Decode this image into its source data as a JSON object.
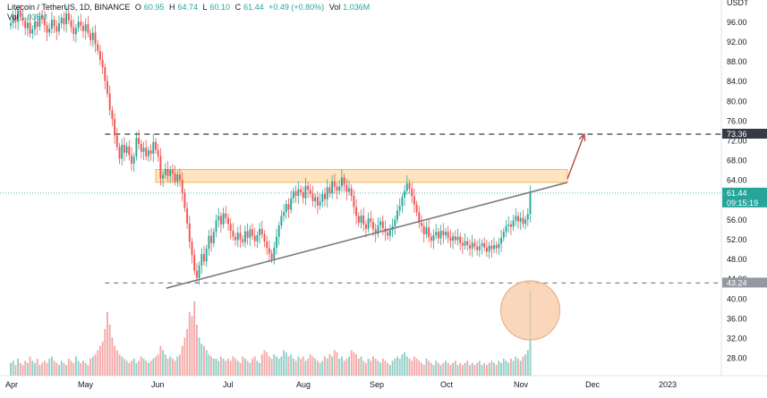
{
  "header": {
    "symbol": "Litecoin / TetherUS, 1D, BINANCE",
    "open_label": "O",
    "open": "60.95",
    "high_label": "H",
    "high": "64.74",
    "low_label": "L",
    "low": "60.10",
    "close_label": "C",
    "close": "61.44",
    "change": "+0.49 (+0.80%)",
    "vol_label": "Vol",
    "vol_value": "1.036M",
    "vol_row_label": "Vol",
    "vol_row_value": "1.036M"
  },
  "colors": {
    "up": "#26a69a",
    "down": "#ef5350",
    "up_vol": "#8fd0c7",
    "down_vol": "#f5a9a7",
    "resistance_zone": "#ffd08a",
    "arrow": "#b34a4a",
    "trendline": "#7a7a84",
    "circle": "#f8c9a4"
  },
  "chart_data": {
    "type": "candlestick",
    "y_axis_title": "USDT",
    "ylim": [
      24.5,
      100.5
    ],
    "y_ticks": [
      "96.00",
      "92.00",
      "88.00",
      "84.00",
      "80.00",
      "76.00",
      "72.00",
      "68.00",
      "64.00",
      "60.00",
      "56.00",
      "52.00",
      "48.00",
      "44.00",
      "40.00",
      "36.00",
      "32.00",
      "28.00"
    ],
    "x_ticks": [
      "Apr",
      "May",
      "Jun",
      "Jul",
      "Aug",
      "Sep",
      "Oct",
      "Nov",
      "Dec",
      "2023"
    ],
    "price_label": "61.44",
    "countdown": "09:15:19",
    "level_labels": [
      "73.36",
      "43.24"
    ],
    "levels": [
      73.36,
      43.24
    ],
    "resistance_zone": [
      63.6,
      66.2
    ],
    "current_price": 61.44,
    "trendline": {
      "from": [
        "Jun 5",
        42.2
      ],
      "to": [
        "Nov 21",
        63.6
      ]
    },
    "projection_arrow": {
      "from": [
        "Nov 21",
        64.3
      ],
      "to": [
        "Nov 28",
        73.36
      ]
    },
    "volume_highlight": "Nov",
    "candles_month_start": "Apr",
    "closes": [
      95.8,
      97.2,
      96.1,
      98.4,
      97.0,
      96.3,
      94.8,
      95.9,
      93.7,
      94.6,
      96.2,
      95.1,
      97.3,
      96.8,
      95.4,
      93.9,
      94.7,
      96.5,
      95.2,
      94.1,
      95.8,
      96.9,
      95.6,
      97.8,
      96.4,
      95.0,
      93.6,
      94.8,
      96.1,
      95.3,
      94.2,
      95.6,
      93.8,
      92.4,
      93.9,
      91.6,
      90.2,
      88.4,
      86.9,
      84.1,
      81.6,
      78.2,
      76.4,
      73.1,
      70.8,
      68.4,
      71.2,
      69.6,
      70.9,
      69.1,
      67.4,
      68.8,
      72.6,
      71.4,
      69.8,
      70.6,
      68.9,
      70.1,
      69.4,
      71.8,
      70.2,
      68.9,
      64.4,
      65.1,
      66.3,
      64.9,
      66.1,
      65.4,
      63.8,
      65.2,
      64.1,
      61.5,
      58.4,
      55.3,
      51.6,
      48.9,
      45.7,
      44.3,
      46.8,
      49.1,
      47.6,
      50.2,
      52.8,
      51.3,
      53.6,
      55.9,
      56.8,
      55.1,
      57.3,
      56.4,
      55.2,
      53.8,
      52.6,
      51.9,
      53.4,
      52.1,
      51.5,
      53.7,
      52.4,
      54.1,
      52.8,
      51.7,
      52.9,
      54.2,
      53.1,
      51.6,
      50.3,
      49.2,
      48.1,
      50.4,
      52.6,
      54.9,
      56.8,
      57.6,
      59.2,
      58.1,
      60.4,
      61.8,
      60.9,
      62.2,
      61.6,
      60.4,
      62.9,
      62.1,
      61.3,
      59.8,
      60.6,
      58.9,
      59.7,
      61.3,
      60.2,
      62.6,
      61.4,
      63.8,
      62.7,
      61.9,
      62.8,
      64.6,
      63.1,
      61.7,
      62.4,
      60.9,
      58.6,
      56.8,
      55.4,
      56.9,
      55.1,
      54.2,
      56.3,
      55.6,
      54.1,
      53.2,
      54.9,
      55.7,
      54.3,
      53.5,
      52.8,
      53.9,
      54.7,
      56.1,
      57.9,
      58.8,
      60.6,
      61.9,
      63.4,
      62.3,
      60.8,
      59.1,
      57.6,
      55.4,
      54.8,
      53.1,
      54.5,
      52.6,
      51.8,
      52.9,
      53.6,
      52.3,
      53.8,
      52.9,
      53.6,
      52.4,
      51.8,
      52.7,
      51.9,
      52.6,
      51.3,
      50.8,
      51.7,
      50.9,
      50.2,
      51.4,
      50.6,
      49.9,
      50.7,
      51.3,
      50.4,
      49.6,
      50.8,
      50.1,
      50.9,
      50.3,
      51.2,
      52.4,
      53.6,
      54.8,
      55.1,
      54.6,
      55.9,
      56.8,
      55.7,
      56.4,
      55.2,
      56.1,
      57.2,
      61.4
    ],
    "volumes": [
      6,
      7,
      5,
      8,
      6,
      5,
      7,
      6,
      9,
      7,
      6,
      8,
      5,
      6,
      7,
      6,
      8,
      9,
      7,
      6,
      5,
      7,
      6,
      5,
      8,
      7,
      6,
      9,
      7,
      6,
      7,
      6,
      5,
      8,
      9,
      10,
      12,
      14,
      16,
      22,
      30,
      24,
      18,
      14,
      12,
      10,
      9,
      8,
      7,
      6,
      7,
      8,
      6,
      7,
      9,
      8,
      7,
      6,
      7,
      8,
      9,
      10,
      14,
      12,
      10,
      8,
      9,
      8,
      7,
      9,
      10,
      14,
      18,
      22,
      30,
      28,
      35,
      24,
      18,
      15,
      14,
      12,
      10,
      9,
      8,
      8,
      7,
      9,
      8,
      7,
      8,
      7,
      9,
      8,
      7,
      6,
      9,
      8,
      7,
      6,
      8,
      9,
      7,
      6,
      10,
      12,
      11,
      9,
      8,
      10,
      9,
      8,
      9,
      12,
      11,
      9,
      10,
      8,
      7,
      9,
      8,
      9,
      7,
      8,
      10,
      9,
      8,
      7,
      6,
      7,
      9,
      8,
      10,
      9,
      12,
      11,
      8,
      9,
      7,
      8,
      9,
      12,
      11,
      10,
      8,
      9,
      7,
      6,
      8,
      7,
      9,
      8,
      7,
      6,
      8,
      7,
      6,
      5,
      7,
      8,
      9,
      8,
      10,
      11,
      9,
      8,
      7,
      9,
      8,
      7,
      6,
      5,
      8,
      7,
      6,
      5,
      7,
      6,
      5,
      6,
      7,
      6,
      5,
      6,
      7,
      5,
      6,
      5,
      6,
      7,
      5,
      6,
      5,
      6,
      7,
      5,
      6,
      5,
      6,
      7,
      6,
      5,
      7,
      6,
      8,
      7,
      6,
      8,
      7,
      9,
      8,
      7,
      9,
      10,
      12,
      40
    ]
  }
}
